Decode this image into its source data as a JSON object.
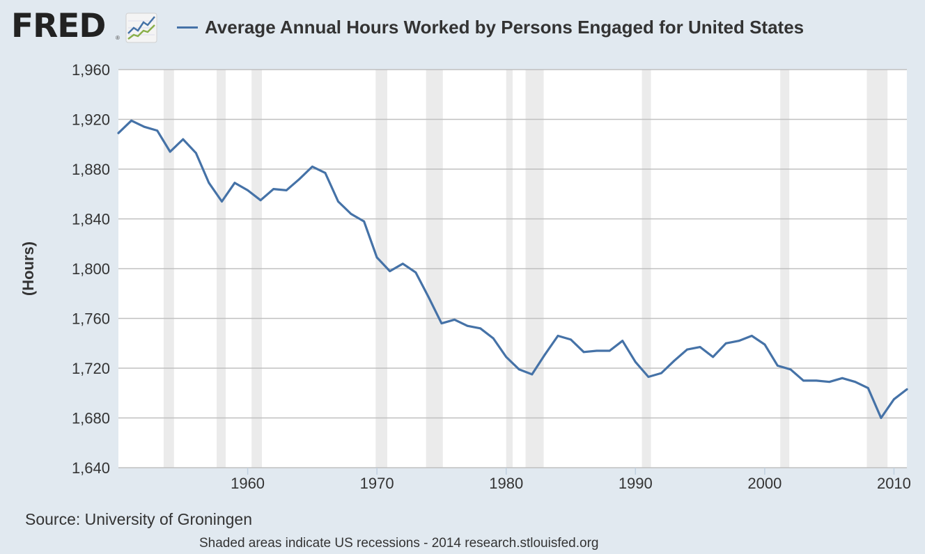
{
  "header": {
    "logo_text": "FRED",
    "registered_mark": "®",
    "title": "Average Annual Hours Worked by Persons Engaged for United States"
  },
  "footer": {
    "source": "Source: University of Groningen",
    "note": "Shaded areas indicate US recessions - 2014 research.stlouisfed.org"
  },
  "colors": {
    "series": "#4572a7",
    "recession": "#ebebeb",
    "plot_bg": "#ffffff",
    "page_bg": "#e1e9f0",
    "grid": "#c0c0c0"
  },
  "icons": [
    "fred-chart-icon"
  ],
  "chart_data": {
    "type": "line",
    "title": "Average Annual Hours Worked by Persons Engaged for United States",
    "xlabel": "",
    "ylabel": "(Hours)",
    "xlim": [
      1950,
      2011
    ],
    "ylim": [
      1640,
      1960
    ],
    "yticks": [
      1640,
      1680,
      1720,
      1760,
      1800,
      1840,
      1880,
      1920,
      1960
    ],
    "ytick_labels": [
      "1,640",
      "1,680",
      "1,720",
      "1,760",
      "1,800",
      "1,840",
      "1,880",
      "1,920",
      "1,960"
    ],
    "xticks": [
      1960,
      1970,
      1980,
      1990,
      2000,
      2010
    ],
    "xtick_labels": [
      "1960",
      "1970",
      "1980",
      "1990",
      "2000",
      "2010"
    ],
    "grid": true,
    "recessions": [
      [
        1953.5,
        1954.3
      ],
      [
        1957.6,
        1958.3
      ],
      [
        1960.3,
        1961.1
      ],
      [
        1969.9,
        1970.8
      ],
      [
        1973.8,
        1975.1
      ],
      [
        1980.0,
        1980.5
      ],
      [
        1981.5,
        1982.9
      ],
      [
        1990.5,
        1991.2
      ],
      [
        2001.2,
        2001.9
      ],
      [
        2007.9,
        2009.5
      ]
    ],
    "series": [
      {
        "x": [
          1950,
          1951,
          1952,
          1953,
          1954,
          1955,
          1956,
          1957,
          1958,
          1959,
          1960,
          1961,
          1962,
          1963,
          1964,
          1965,
          1966,
          1967,
          1968,
          1969,
          1970,
          1971,
          1972,
          1973,
          1974,
          1975,
          1976,
          1977,
          1978,
          1979,
          1980,
          1981,
          1982,
          1983,
          1984,
          1985,
          1986,
          1987,
          1988,
          1989,
          1990,
          1991,
          1992,
          1993,
          1994,
          1995,
          1996,
          1997,
          1998,
          1999,
          2000,
          2001,
          2002,
          2003,
          2004,
          2005,
          2006,
          2007,
          2008,
          2009,
          2010,
          2011
        ],
        "values": [
          1909,
          1919,
          1914,
          1911,
          1894,
          1904,
          1893,
          1869,
          1854,
          1869,
          1863,
          1855,
          1864,
          1863,
          1872,
          1882,
          1877,
          1854,
          1844,
          1838,
          1809,
          1798,
          1804,
          1797,
          1777,
          1756,
          1759,
          1754,
          1752,
          1744,
          1729,
          1719,
          1715,
          1731,
          1746,
          1743,
          1733,
          1734,
          1734,
          1742,
          1725,
          1713,
          1716,
          1726,
          1735,
          1737,
          1729,
          1740,
          1742,
          1746,
          1739,
          1722,
          1719,
          1710,
          1710,
          1709,
          1712,
          1709,
          1704,
          1680,
          1695,
          1703
        ]
      }
    ]
  }
}
